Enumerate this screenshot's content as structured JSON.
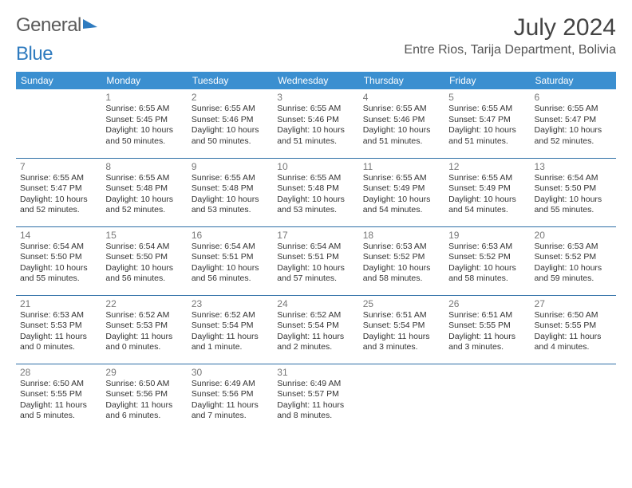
{
  "logo": {
    "part1": "General",
    "part2": "Blue"
  },
  "title": "July 2024",
  "location": "Entre Rios, Tarija Department, Bolivia",
  "colors": {
    "header_bg": "#3b8fd0",
    "header_text": "#ffffff",
    "row_border": "#2e6fa6",
    "body_text": "#333333",
    "daynum_text": "#777777",
    "logo_gray": "#5a5a5a",
    "logo_blue": "#2f7bbf",
    "page_bg": "#ffffff"
  },
  "fonts": {
    "title_size_pt": 22,
    "location_size_pt": 12,
    "header_size_pt": 9,
    "cell_size_pt": 8
  },
  "days_of_week": [
    "Sunday",
    "Monday",
    "Tuesday",
    "Wednesday",
    "Thursday",
    "Friday",
    "Saturday"
  ],
  "weeks": [
    [
      null,
      {
        "n": "1",
        "sunrise": "Sunrise: 6:55 AM",
        "sunset": "Sunset: 5:45 PM",
        "dl1": "Daylight: 10 hours",
        "dl2": "and 50 minutes."
      },
      {
        "n": "2",
        "sunrise": "Sunrise: 6:55 AM",
        "sunset": "Sunset: 5:46 PM",
        "dl1": "Daylight: 10 hours",
        "dl2": "and 50 minutes."
      },
      {
        "n": "3",
        "sunrise": "Sunrise: 6:55 AM",
        "sunset": "Sunset: 5:46 PM",
        "dl1": "Daylight: 10 hours",
        "dl2": "and 51 minutes."
      },
      {
        "n": "4",
        "sunrise": "Sunrise: 6:55 AM",
        "sunset": "Sunset: 5:46 PM",
        "dl1": "Daylight: 10 hours",
        "dl2": "and 51 minutes."
      },
      {
        "n": "5",
        "sunrise": "Sunrise: 6:55 AM",
        "sunset": "Sunset: 5:47 PM",
        "dl1": "Daylight: 10 hours",
        "dl2": "and 51 minutes."
      },
      {
        "n": "6",
        "sunrise": "Sunrise: 6:55 AM",
        "sunset": "Sunset: 5:47 PM",
        "dl1": "Daylight: 10 hours",
        "dl2": "and 52 minutes."
      }
    ],
    [
      {
        "n": "7",
        "sunrise": "Sunrise: 6:55 AM",
        "sunset": "Sunset: 5:47 PM",
        "dl1": "Daylight: 10 hours",
        "dl2": "and 52 minutes."
      },
      {
        "n": "8",
        "sunrise": "Sunrise: 6:55 AM",
        "sunset": "Sunset: 5:48 PM",
        "dl1": "Daylight: 10 hours",
        "dl2": "and 52 minutes."
      },
      {
        "n": "9",
        "sunrise": "Sunrise: 6:55 AM",
        "sunset": "Sunset: 5:48 PM",
        "dl1": "Daylight: 10 hours",
        "dl2": "and 53 minutes."
      },
      {
        "n": "10",
        "sunrise": "Sunrise: 6:55 AM",
        "sunset": "Sunset: 5:48 PM",
        "dl1": "Daylight: 10 hours",
        "dl2": "and 53 minutes."
      },
      {
        "n": "11",
        "sunrise": "Sunrise: 6:55 AM",
        "sunset": "Sunset: 5:49 PM",
        "dl1": "Daylight: 10 hours",
        "dl2": "and 54 minutes."
      },
      {
        "n": "12",
        "sunrise": "Sunrise: 6:55 AM",
        "sunset": "Sunset: 5:49 PM",
        "dl1": "Daylight: 10 hours",
        "dl2": "and 54 minutes."
      },
      {
        "n": "13",
        "sunrise": "Sunrise: 6:54 AM",
        "sunset": "Sunset: 5:50 PM",
        "dl1": "Daylight: 10 hours",
        "dl2": "and 55 minutes."
      }
    ],
    [
      {
        "n": "14",
        "sunrise": "Sunrise: 6:54 AM",
        "sunset": "Sunset: 5:50 PM",
        "dl1": "Daylight: 10 hours",
        "dl2": "and 55 minutes."
      },
      {
        "n": "15",
        "sunrise": "Sunrise: 6:54 AM",
        "sunset": "Sunset: 5:50 PM",
        "dl1": "Daylight: 10 hours",
        "dl2": "and 56 minutes."
      },
      {
        "n": "16",
        "sunrise": "Sunrise: 6:54 AM",
        "sunset": "Sunset: 5:51 PM",
        "dl1": "Daylight: 10 hours",
        "dl2": "and 56 minutes."
      },
      {
        "n": "17",
        "sunrise": "Sunrise: 6:54 AM",
        "sunset": "Sunset: 5:51 PM",
        "dl1": "Daylight: 10 hours",
        "dl2": "and 57 minutes."
      },
      {
        "n": "18",
        "sunrise": "Sunrise: 6:53 AM",
        "sunset": "Sunset: 5:52 PM",
        "dl1": "Daylight: 10 hours",
        "dl2": "and 58 minutes."
      },
      {
        "n": "19",
        "sunrise": "Sunrise: 6:53 AM",
        "sunset": "Sunset: 5:52 PM",
        "dl1": "Daylight: 10 hours",
        "dl2": "and 58 minutes."
      },
      {
        "n": "20",
        "sunrise": "Sunrise: 6:53 AM",
        "sunset": "Sunset: 5:52 PM",
        "dl1": "Daylight: 10 hours",
        "dl2": "and 59 minutes."
      }
    ],
    [
      {
        "n": "21",
        "sunrise": "Sunrise: 6:53 AM",
        "sunset": "Sunset: 5:53 PM",
        "dl1": "Daylight: 11 hours",
        "dl2": "and 0 minutes."
      },
      {
        "n": "22",
        "sunrise": "Sunrise: 6:52 AM",
        "sunset": "Sunset: 5:53 PM",
        "dl1": "Daylight: 11 hours",
        "dl2": "and 0 minutes."
      },
      {
        "n": "23",
        "sunrise": "Sunrise: 6:52 AM",
        "sunset": "Sunset: 5:54 PM",
        "dl1": "Daylight: 11 hours",
        "dl2": "and 1 minute."
      },
      {
        "n": "24",
        "sunrise": "Sunrise: 6:52 AM",
        "sunset": "Sunset: 5:54 PM",
        "dl1": "Daylight: 11 hours",
        "dl2": "and 2 minutes."
      },
      {
        "n": "25",
        "sunrise": "Sunrise: 6:51 AM",
        "sunset": "Sunset: 5:54 PM",
        "dl1": "Daylight: 11 hours",
        "dl2": "and 3 minutes."
      },
      {
        "n": "26",
        "sunrise": "Sunrise: 6:51 AM",
        "sunset": "Sunset: 5:55 PM",
        "dl1": "Daylight: 11 hours",
        "dl2": "and 3 minutes."
      },
      {
        "n": "27",
        "sunrise": "Sunrise: 6:50 AM",
        "sunset": "Sunset: 5:55 PM",
        "dl1": "Daylight: 11 hours",
        "dl2": "and 4 minutes."
      }
    ],
    [
      {
        "n": "28",
        "sunrise": "Sunrise: 6:50 AM",
        "sunset": "Sunset: 5:55 PM",
        "dl1": "Daylight: 11 hours",
        "dl2": "and 5 minutes."
      },
      {
        "n": "29",
        "sunrise": "Sunrise: 6:50 AM",
        "sunset": "Sunset: 5:56 PM",
        "dl1": "Daylight: 11 hours",
        "dl2": "and 6 minutes."
      },
      {
        "n": "30",
        "sunrise": "Sunrise: 6:49 AM",
        "sunset": "Sunset: 5:56 PM",
        "dl1": "Daylight: 11 hours",
        "dl2": "and 7 minutes."
      },
      {
        "n": "31",
        "sunrise": "Sunrise: 6:49 AM",
        "sunset": "Sunset: 5:57 PM",
        "dl1": "Daylight: 11 hours",
        "dl2": "and 8 minutes."
      },
      null,
      null,
      null
    ]
  ]
}
